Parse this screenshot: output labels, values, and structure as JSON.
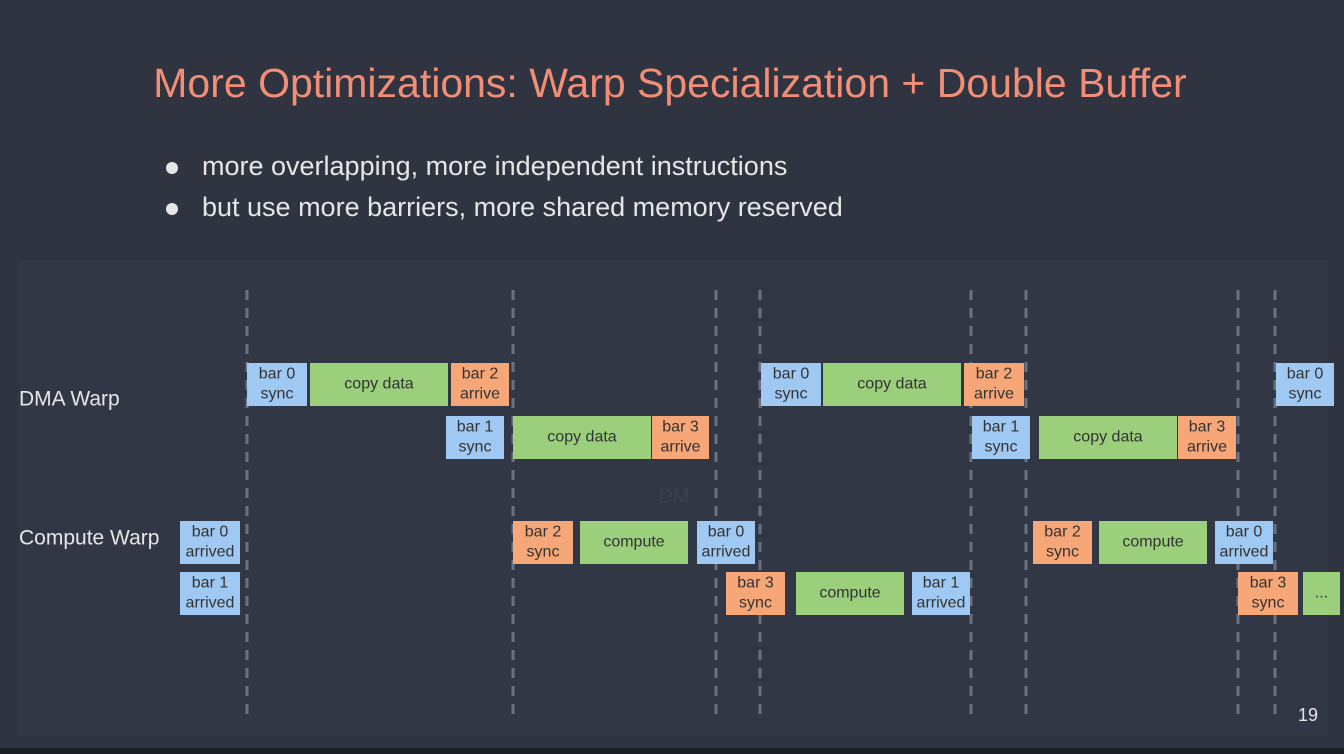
{
  "header": {
    "title": "More Optimizations: Warp Specialization + Double Buffer"
  },
  "bullets": [
    "more overlapping, more independent instructions",
    "but use more barriers, more shared memory reserved"
  ],
  "diagram": {
    "rows": [
      "DMA Warp",
      "Compute Warp"
    ],
    "faint_text": "DM",
    "boxes": [
      {
        "lines": [
          "bar 0",
          "sync"
        ]
      },
      {
        "lines": [
          "copy data"
        ]
      },
      {
        "lines": [
          "bar 2",
          "arrive"
        ]
      },
      {
        "lines": [
          "bar 0",
          "sync"
        ]
      },
      {
        "lines": [
          "copy data"
        ]
      },
      {
        "lines": [
          "bar 2",
          "arrive"
        ]
      },
      {
        "lines": [
          "bar 0",
          "sync"
        ]
      },
      {
        "lines": [
          "bar 1",
          "sync"
        ]
      },
      {
        "lines": [
          "copy data"
        ]
      },
      {
        "lines": [
          "bar 3",
          "arrive"
        ]
      },
      {
        "lines": [
          "bar 1",
          "sync"
        ]
      },
      {
        "lines": [
          "copy data"
        ]
      },
      {
        "lines": [
          "bar 3",
          "arrive"
        ]
      },
      {
        "lines": [
          "bar 0",
          "arrived"
        ]
      },
      {
        "lines": [
          "bar 2",
          "sync"
        ]
      },
      {
        "lines": [
          "compute"
        ]
      },
      {
        "lines": [
          "bar 0",
          "arrived"
        ]
      },
      {
        "lines": [
          "bar 2",
          "sync"
        ]
      },
      {
        "lines": [
          "compute"
        ]
      },
      {
        "lines": [
          "bar 0",
          "arrived"
        ]
      },
      {
        "lines": [
          "bar 1",
          "arrived"
        ]
      },
      {
        "lines": [
          "bar 3",
          "sync"
        ]
      },
      {
        "lines": [
          "compute"
        ]
      },
      {
        "lines": [
          "bar 1",
          "arrived"
        ]
      },
      {
        "lines": [
          "bar 3",
          "sync"
        ]
      },
      {
        "lines": [
          "..."
        ]
      }
    ]
  },
  "footer": {
    "page_number": "19"
  }
}
